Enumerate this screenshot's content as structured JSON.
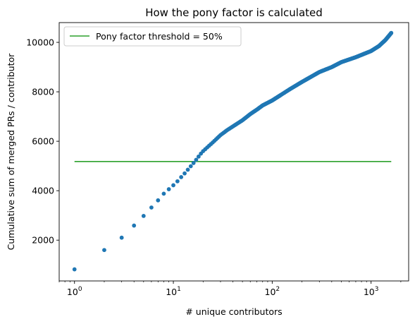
{
  "chart_data": {
    "type": "scatter",
    "title": "How the pony factor is calculated",
    "xlabel": "# unique contributors",
    "ylabel": "Cumulative sum of merged PRs / contributor",
    "xscale": "log",
    "xlim": [
      0.7,
      2400
    ],
    "ylim": [
      350,
      10800
    ],
    "xticks": [
      {
        "value": 1,
        "base": "10",
        "exp": "0"
      },
      {
        "value": 10,
        "base": "10",
        "exp": "1"
      },
      {
        "value": 100,
        "base": "10",
        "exp": "2"
      },
      {
        "value": 1000,
        "base": "10",
        "exp": "3"
      }
    ],
    "yticks": [
      {
        "value": 2000,
        "label": "2000"
      },
      {
        "value": 4000,
        "label": "4000"
      },
      {
        "value": 6000,
        "label": "6000"
      },
      {
        "value": 8000,
        "label": "8000"
      },
      {
        "value": 10000,
        "label": "10000"
      }
    ],
    "grid": false,
    "legend_position": "top-left",
    "threshold": {
      "name": "Pony factor threshold = 50%",
      "y": 5180,
      "xrange": [
        1,
        1600
      ],
      "color": "#2ca02c"
    },
    "series": [
      {
        "color": "#1f77b4",
        "points": [
          [
            1,
            820
          ],
          [
            2,
            1600
          ],
          [
            3,
            2100
          ],
          [
            4,
            2590
          ],
          [
            5,
            2980
          ],
          [
            6,
            3320
          ],
          [
            7,
            3610
          ],
          [
            8,
            3880
          ],
          [
            9,
            4060
          ],
          [
            10,
            4220
          ],
          [
            11,
            4380
          ],
          [
            12,
            4550
          ],
          [
            13,
            4700
          ],
          [
            14,
            4850
          ],
          [
            15,
            4990
          ],
          [
            16,
            5120
          ],
          [
            17,
            5250
          ],
          [
            18,
            5380
          ],
          [
            19,
            5500
          ],
          [
            20,
            5600
          ],
          [
            22,
            5750
          ],
          [
            25,
            5950
          ],
          [
            30,
            6250
          ],
          [
            35,
            6450
          ],
          [
            40,
            6600
          ],
          [
            50,
            6850
          ],
          [
            60,
            7100
          ],
          [
            70,
            7280
          ],
          [
            80,
            7450
          ],
          [
            100,
            7650
          ],
          [
            150,
            8100
          ],
          [
            200,
            8400
          ],
          [
            300,
            8800
          ],
          [
            400,
            9000
          ],
          [
            500,
            9200
          ],
          [
            700,
            9400
          ],
          [
            1000,
            9650
          ],
          [
            1200,
            9850
          ],
          [
            1400,
            10100
          ],
          [
            1600,
            10380
          ]
        ]
      }
    ]
  }
}
